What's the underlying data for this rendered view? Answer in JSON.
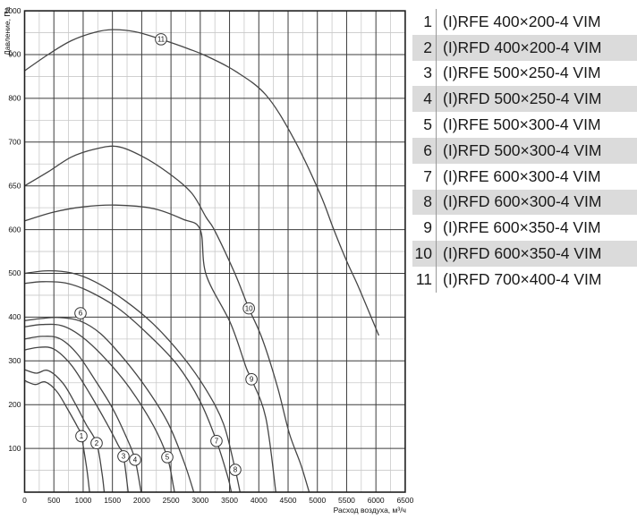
{
  "colors": {
    "curve": "#454545",
    "grid_major": "#3c3c3c",
    "grid_minor": "#c9c9c9",
    "border": "#1f1f1f",
    "legend_stripe": "#dbdbdb",
    "text": "#111111"
  },
  "legend": {
    "rows": [
      {
        "num": "1",
        "label": "(I)RFE 400×200-4 VIM"
      },
      {
        "num": "2",
        "label": "(I)RFD 400×200-4 VIM"
      },
      {
        "num": "3",
        "label": "(I)RFE 500×250-4 VIM"
      },
      {
        "num": "4",
        "label": "(I)RFD 500×250-4 VIM"
      },
      {
        "num": "5",
        "label": "(I)RFE 500×300-4 VIM"
      },
      {
        "num": "6",
        "label": "(I)RFD 500×300-4 VIM"
      },
      {
        "num": "7",
        "label": "(I)RFE 600×300-4 VIM"
      },
      {
        "num": "8",
        "label": "(I)RFD 600×300-4 VIM"
      },
      {
        "num": "9",
        "label": "(I)RFE 600×350-4 VIM"
      },
      {
        "num": "10",
        "label": "(I)RFD 600×350-4 VIM"
      },
      {
        "num": "11",
        "label": "(I)RFD 700×400-4 VIM"
      }
    ]
  },
  "chart_data": {
    "type": "line",
    "title": "",
    "xlabel": "Расход воздуха, м³/ч",
    "ylabel": "Давление, Па",
    "xlim": [
      0,
      6500
    ],
    "ylim": [
      0,
      1000
    ],
    "grid": "on",
    "x_tick_labels": [
      0,
      500,
      1000,
      1500,
      2000,
      2500,
      3000,
      3500,
      4000,
      4500,
      5000,
      5500,
      6000,
      6500
    ],
    "x_minor_step": 250,
    "y_tick_labels": [
      1000,
      900,
      800,
      700,
      650,
      600,
      500,
      400,
      300,
      200,
      100
    ],
    "y_scale_stops": [
      0,
      100,
      200,
      300,
      400,
      500,
      600,
      650,
      700,
      800,
      900,
      1000
    ],
    "y_minor_values": [
      50,
      150,
      250,
      350,
      450,
      550,
      625,
      675,
      750,
      850,
      950
    ],
    "axis_note": "y axis drawn with equal pixel spacing between consecutive labeled stops (650 gets a full slot)",
    "series": [
      {
        "n": "1",
        "model": "(I)RFE 400×200-4 VIM",
        "label_at": [
          970,
          128
        ],
        "points": [
          [
            0,
            255
          ],
          [
            180,
            246
          ],
          [
            350,
            252
          ],
          [
            550,
            230
          ],
          [
            750,
            186
          ],
          [
            900,
            150
          ],
          [
            970,
            128
          ],
          [
            1060,
            55
          ],
          [
            1110,
            0
          ]
        ]
      },
      {
        "n": "2",
        "model": "(I)RFD 400×200-4 VIM",
        "label_at": [
          1230,
          112
        ],
        "points": [
          [
            0,
            280
          ],
          [
            200,
            272
          ],
          [
            400,
            278
          ],
          [
            650,
            250
          ],
          [
            850,
            206
          ],
          [
            1050,
            155
          ],
          [
            1230,
            112
          ],
          [
            1320,
            45
          ],
          [
            1360,
            0
          ]
        ]
      },
      {
        "n": "3",
        "model": "(I)RFE 500×250-4 VIM",
        "label_at": [
          1688,
          82
        ],
        "points": [
          [
            0,
            325
          ],
          [
            250,
            331
          ],
          [
            500,
            327
          ],
          [
            800,
            290
          ],
          [
            1100,
            228
          ],
          [
            1400,
            158
          ],
          [
            1600,
            107
          ],
          [
            1688,
            82
          ],
          [
            1770,
            0
          ]
        ]
      },
      {
        "n": "4",
        "model": "(I)RFD 500×250-4 VIM",
        "label_at": [
          1887,
          74
        ],
        "points": [
          [
            0,
            350
          ],
          [
            300,
            356
          ],
          [
            600,
            351
          ],
          [
            900,
            316
          ],
          [
            1200,
            257
          ],
          [
            1500,
            192
          ],
          [
            1750,
            122
          ],
          [
            1887,
            74
          ],
          [
            1990,
            0
          ]
        ]
      },
      {
        "n": "5",
        "model": "(I)RFE 500×300-4 VIM",
        "label_at": [
          2437,
          80
        ],
        "points": [
          [
            0,
            378
          ],
          [
            300,
            383
          ],
          [
            650,
            380
          ],
          [
            1000,
            353
          ],
          [
            1400,
            302
          ],
          [
            1800,
            237
          ],
          [
            2200,
            152
          ],
          [
            2437,
            80
          ],
          [
            2540,
            15
          ],
          [
            2560,
            0
          ]
        ]
      },
      {
        "n": "6",
        "model": "(I)RFD 500×300-4 VIM",
        "label_at": [
          955,
          409
        ],
        "label_tick_to": [
          955,
          391
        ],
        "points": [
          [
            0,
            392
          ],
          [
            300,
            397
          ],
          [
            600,
            399
          ],
          [
            950,
            391
          ],
          [
            1300,
            362
          ],
          [
            1700,
            304
          ],
          [
            2100,
            234
          ],
          [
            2450,
            158
          ],
          [
            2720,
            70
          ],
          [
            2890,
            0
          ]
        ]
      },
      {
        "n": "7",
        "model": "(I)RFE 600×300-4 VIM",
        "label_at": [
          3277,
          117
        ],
        "points": [
          [
            0,
            477
          ],
          [
            300,
            481
          ],
          [
            700,
            478
          ],
          [
            1100,
            459
          ],
          [
            1600,
            420
          ],
          [
            2100,
            362
          ],
          [
            2600,
            292
          ],
          [
            3000,
            207
          ],
          [
            3277,
            117
          ],
          [
            3470,
            35
          ],
          [
            3530,
            0
          ]
        ]
      },
      {
        "n": "8",
        "model": "(I)RFD 600×300-4 VIM",
        "label_at": [
          3598,
          51
        ],
        "points": [
          [
            0,
            500
          ],
          [
            400,
            506
          ],
          [
            800,
            501
          ],
          [
            1200,
            481
          ],
          [
            1700,
            439
          ],
          [
            2200,
            384
          ],
          [
            2700,
            310
          ],
          [
            3100,
            234
          ],
          [
            3400,
            155
          ],
          [
            3598,
            51
          ],
          [
            3680,
            0
          ]
        ]
      },
      {
        "n": "9",
        "model": "(I)RFE 600×350-4 VIM",
        "label_at": [
          3875,
          258
        ],
        "points": [
          [
            0,
            610
          ],
          [
            500,
            620
          ],
          [
            1000,
            626
          ],
          [
            1550,
            628
          ],
          [
            2200,
            624
          ],
          [
            2700,
            612
          ],
          [
            3000,
            600
          ],
          [
            3100,
            497
          ],
          [
            3520,
            385
          ],
          [
            3780,
            286
          ],
          [
            3875,
            258
          ],
          [
            4120,
            170
          ],
          [
            4290,
            0
          ]
        ]
      },
      {
        "n": "10",
        "model": "(I)RFD 600×350-4 VIM",
        "label_at": [
          3830,
          420
        ],
        "points": [
          [
            0,
            650
          ],
          [
            400,
            666
          ],
          [
            800,
            683
          ],
          [
            1200,
            692
          ],
          [
            1580,
            695
          ],
          [
            2000,
            684
          ],
          [
            2450,
            665
          ],
          [
            2850,
            642
          ],
          [
            3100,
            614
          ],
          [
            3250,
            597
          ],
          [
            3590,
            500
          ],
          [
            3830,
            420
          ],
          [
            4060,
            350
          ],
          [
            4320,
            240
          ],
          [
            4520,
            135
          ],
          [
            4720,
            62
          ],
          [
            4860,
            0
          ]
        ]
      },
      {
        "n": "11",
        "model": "(I)RFD 700×400-4 VIM",
        "label_at": [
          2330,
          935
        ],
        "points": [
          [
            0,
            863
          ],
          [
            400,
            900
          ],
          [
            800,
            932
          ],
          [
            1200,
            951
          ],
          [
            1500,
            957
          ],
          [
            1900,
            952
          ],
          [
            2330,
            935
          ],
          [
            2800,
            913
          ],
          [
            3100,
            897
          ],
          [
            3600,
            862
          ],
          [
            4120,
            808
          ],
          [
            4580,
            712
          ],
          [
            5040,
            642
          ],
          [
            5280,
            600
          ],
          [
            5500,
            528
          ],
          [
            5700,
            470
          ],
          [
            6050,
            358
          ]
        ]
      }
    ]
  }
}
